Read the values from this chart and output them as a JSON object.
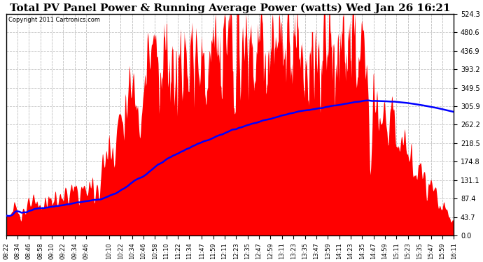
{
  "title": "Total PV Panel Power & Running Average Power (watts) Wed Jan 26 16:21",
  "copyright_text": "Copyright 2011 Cartronics.com",
  "y_max": 524.3,
  "y_min": 0.0,
  "y_ticks": [
    0.0,
    43.7,
    87.4,
    131.1,
    174.8,
    218.5,
    262.2,
    305.9,
    349.5,
    393.2,
    436.9,
    480.6,
    524.3
  ],
  "background_color": "#ffffff",
  "fill_color": "#ff0000",
  "avg_line_color": "#0000ff",
  "grid_color": "#c8c8c8",
  "title_fontsize": 11,
  "x_labels": [
    "08:22",
    "08:34",
    "08:46",
    "08:58",
    "09:10",
    "09:22",
    "09:34",
    "09:46",
    "10:10",
    "10:22",
    "10:34",
    "10:46",
    "10:58",
    "11:10",
    "11:22",
    "11:34",
    "11:47",
    "11:59",
    "12:11",
    "12:23",
    "12:35",
    "12:47",
    "12:59",
    "13:11",
    "13:23",
    "13:35",
    "13:47",
    "13:59",
    "14:11",
    "14:23",
    "14:35",
    "14:47",
    "14:59",
    "15:11",
    "15:23",
    "15:35",
    "15:47",
    "15:59",
    "16:11"
  ]
}
